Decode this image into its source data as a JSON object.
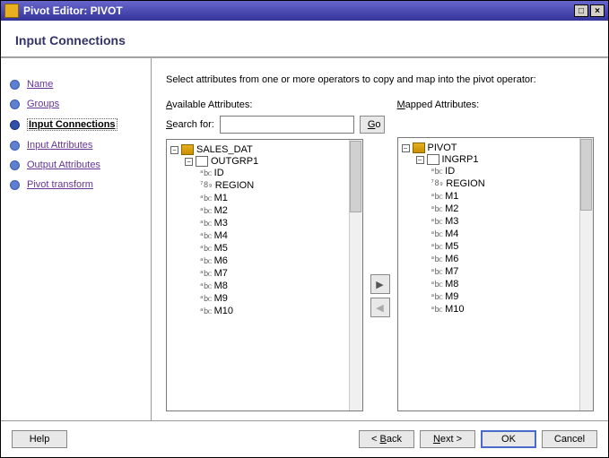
{
  "window": {
    "title": "Pivot Editor: PIVOT"
  },
  "section_title": "Input Connections",
  "nav": {
    "items": [
      {
        "label": "Name",
        "selected": false
      },
      {
        "label": "Groups",
        "selected": false
      },
      {
        "label": "Input Connections",
        "selected": true
      },
      {
        "label": "Input Attributes",
        "selected": false
      },
      {
        "label": "Output Attributes",
        "selected": false
      },
      {
        "label": "Pivot transform",
        "selected": false
      }
    ]
  },
  "main": {
    "instruction": "Select attributes from one or more operators to copy and map into the pivot operator:",
    "available_label": "Available Attributes:",
    "mapped_label": "Mapped Attributes:",
    "search_label": "Search for:",
    "go_btn": "Go"
  },
  "tree_left": {
    "root": "SALES_DAT",
    "group": "OUTGRP1",
    "attrs": [
      {
        "type": "abc",
        "name": "ID"
      },
      {
        "type": "789",
        "name": "REGION"
      },
      {
        "type": "abc",
        "name": "M1"
      },
      {
        "type": "abc",
        "name": "M2"
      },
      {
        "type": "abc",
        "name": "M3"
      },
      {
        "type": "abc",
        "name": "M4"
      },
      {
        "type": "abc",
        "name": "M5"
      },
      {
        "type": "abc",
        "name": "M6"
      },
      {
        "type": "abc",
        "name": "M7"
      },
      {
        "type": "abc",
        "name": "M8"
      },
      {
        "type": "abc",
        "name": "M9"
      },
      {
        "type": "abc",
        "name": "M10"
      }
    ]
  },
  "tree_right": {
    "root": "PIVOT",
    "group": "INGRP1",
    "attrs": [
      {
        "type": "abc",
        "name": "ID"
      },
      {
        "type": "789",
        "name": "REGION"
      },
      {
        "type": "abc",
        "name": "M1"
      },
      {
        "type": "abc",
        "name": "M2"
      },
      {
        "type": "abc",
        "name": "M3"
      },
      {
        "type": "abc",
        "name": "M4"
      },
      {
        "type": "abc",
        "name": "M5"
      },
      {
        "type": "abc",
        "name": "M6"
      },
      {
        "type": "abc",
        "name": "M7"
      },
      {
        "type": "abc",
        "name": "M8"
      },
      {
        "type": "abc",
        "name": "M9"
      },
      {
        "type": "abc",
        "name": "M10"
      }
    ]
  },
  "footer": {
    "help": "Help",
    "back": "< Back",
    "next": "Next >",
    "ok": "OK",
    "cancel": "Cancel"
  },
  "colors": {
    "titlebar_start": "#6666cc",
    "titlebar_end": "#333399",
    "nav_link": "#663399",
    "border": "#7a7a7a"
  }
}
